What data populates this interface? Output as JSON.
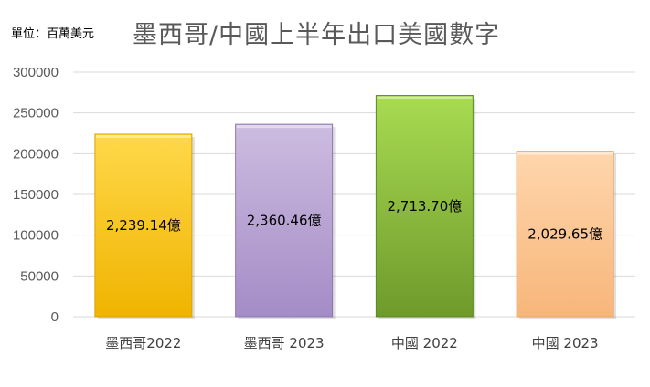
{
  "chart_data": {
    "type": "bar",
    "title": "墨西哥/中國上半年出口美國數字",
    "unit_label": "單位：百萬美元",
    "categories": [
      "墨西哥2022",
      "墨西哥 2023",
      "中國 2022",
      "中國 2023"
    ],
    "values": [
      223914,
      236046,
      271370,
      202965
    ],
    "data_labels": [
      "2,239.14億",
      "2,360.46億",
      "2,713.70億",
      "2,029.65億"
    ],
    "ylim": [
      0,
      300000
    ],
    "yticks": [
      0,
      50000,
      100000,
      150000,
      200000,
      250000,
      300000
    ],
    "grid": true,
    "legend": "none",
    "colors": [
      {
        "light": "#FFD84A",
        "dark": "#F0B400",
        "edge": "#D9A300"
      },
      {
        "light": "#CDBCE0",
        "dark": "#A48CC6",
        "edge": "#8E76B3"
      },
      {
        "light": "#A9DB52",
        "dark": "#6E9A2B",
        "edge": "#5E8622"
      },
      {
        "light": "#FFD6AD",
        "dark": "#F7B67A",
        "edge": "#E9A262"
      }
    ]
  }
}
